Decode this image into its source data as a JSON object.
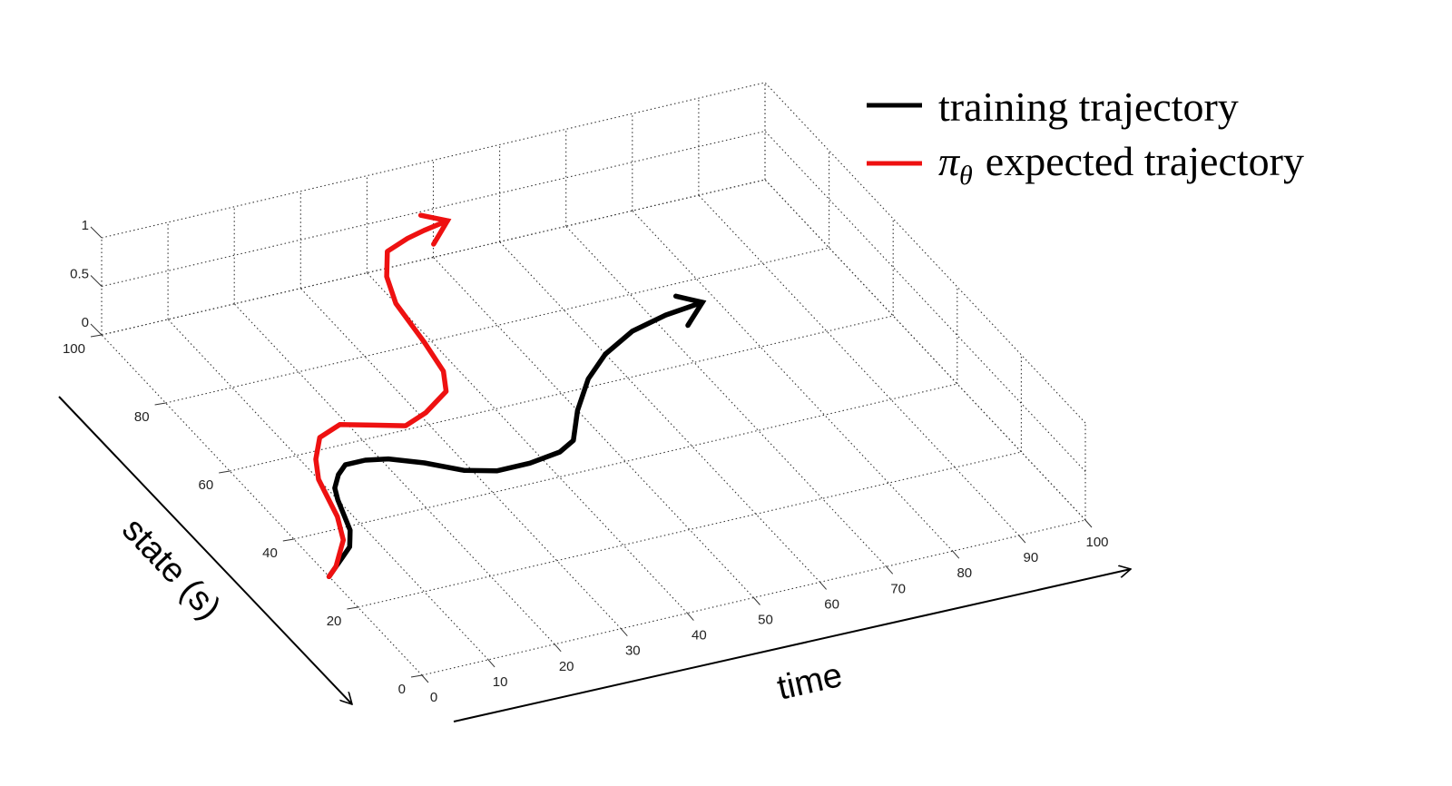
{
  "chart_data": {
    "type": "line",
    "projection": "3d",
    "xlabel": "time",
    "ylabel": "state (s)",
    "xlim": [
      0,
      100
    ],
    "ylim": [
      0,
      100
    ],
    "zlim": [
      0,
      1
    ],
    "x_ticks": [
      "0",
      "10",
      "20",
      "30",
      "40",
      "50",
      "60",
      "70",
      "80",
      "90",
      "100"
    ],
    "y_ticks": [
      "0",
      "20",
      "40",
      "60",
      "80",
      "100"
    ],
    "z_ticks": [
      "0",
      "0.5",
      "1"
    ],
    "grid": true,
    "legend_position": "top-right",
    "series": [
      {
        "name": "training trajectory",
        "color": "#000000",
        "points": [
          [
            0,
            29
          ],
          [
            2,
            31
          ],
          [
            4,
            33
          ],
          [
            6,
            35
          ],
          [
            7,
            37
          ],
          [
            8,
            39
          ],
          [
            9,
            43
          ],
          [
            10,
            47
          ],
          [
            11,
            50
          ],
          [
            13,
            53
          ],
          [
            15,
            55
          ],
          [
            18,
            55
          ],
          [
            21,
            54
          ],
          [
            25,
            51
          ],
          [
            29,
            47
          ],
          [
            33,
            45
          ],
          [
            38,
            45
          ],
          [
            43,
            46
          ],
          [
            46,
            48
          ],
          [
            50,
            55
          ],
          [
            55,
            62
          ],
          [
            60,
            67
          ],
          [
            66,
            71
          ],
          [
            72,
            73
          ],
          [
            78,
            74
          ]
        ]
      },
      {
        "name": "expected trajectory",
        "legend_symbol": "π",
        "legend_subscript": "θ",
        "color": "#ee1111",
        "points": [
          [
            0,
            29
          ],
          [
            2,
            31
          ],
          [
            4,
            34
          ],
          [
            6,
            37
          ],
          [
            7,
            40
          ],
          [
            8,
            43
          ],
          [
            9,
            48
          ],
          [
            10,
            53
          ],
          [
            12,
            58
          ],
          [
            15,
            63
          ],
          [
            19,
            65
          ],
          [
            23,
            63
          ],
          [
            27,
            61
          ],
          [
            31,
            63
          ],
          [
            36,
            67
          ],
          [
            38,
            72
          ],
          [
            39,
            80
          ],
          [
            40,
            91
          ],
          [
            42,
            98
          ],
          [
            45,
            104
          ],
          [
            49,
            106
          ],
          [
            52,
            107
          ],
          [
            56,
            108
          ]
        ]
      }
    ]
  }
}
